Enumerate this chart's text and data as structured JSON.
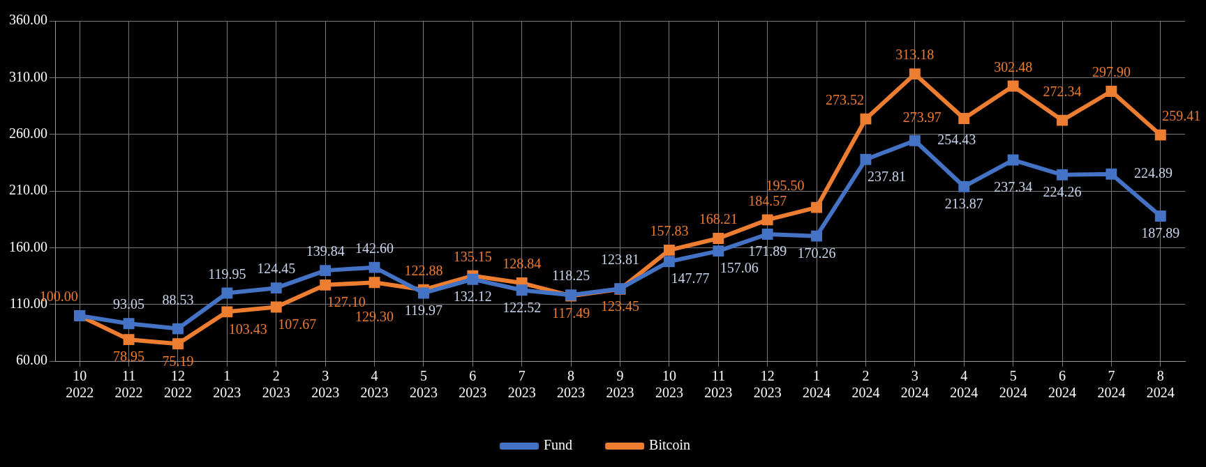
{
  "chart_data": {
    "type": "line",
    "categories": [
      "10\n2022",
      "11\n2022",
      "12\n2022",
      "1\n2023",
      "2\n2023",
      "3\n2023",
      "4\n2023",
      "5\n2023",
      "6\n2023",
      "7\n2023",
      "8\n2023",
      "9\n2023",
      "10\n2023",
      "11\n2023",
      "12\n2023",
      "1\n2024",
      "2\n2024",
      "3\n2024",
      "4\n2024",
      "5\n2024",
      "6\n2024",
      "7\n2024",
      "8\n2024"
    ],
    "series": [
      {
        "name": "Fund",
        "color": "#4472c4",
        "values": [
          100,
          93.05,
          88.53,
          119.95,
          124.45,
          139.84,
          142.6,
          119.97,
          132.12,
          122.52,
          118.25,
          123.81,
          147.77,
          157.06,
          171.89,
          170.26,
          237.81,
          254.43,
          213.87,
          237.34,
          224.26,
          224.89,
          187.89
        ],
        "value_labels": [
          null,
          "93.05",
          "88.53",
          "119.95",
          "124.45",
          "139.84",
          "142.60",
          "119.97",
          "132.12",
          "122.52",
          "118.25",
          "123.81",
          "147.77",
          "157.06",
          "171.89",
          "170.26",
          "237.81",
          "254.43",
          "213.87",
          "237.34",
          "224.26",
          "224.89",
          "187.89"
        ]
      },
      {
        "name": "Bitcoin",
        "color": "#ed7d31",
        "values": [
          100.0,
          78.95,
          75.19,
          103.43,
          107.67,
          127.1,
          129.3,
          122.88,
          135.15,
          128.84,
          117.49,
          123.45,
          157.83,
          168.21,
          184.57,
          195.5,
          273.52,
          313.18,
          273.97,
          302.48,
          272.34,
          297.9,
          259.41
        ],
        "value_labels": [
          "100.00",
          "78.95",
          "75.19",
          "103.43",
          "107.67",
          "127.10",
          "129.30",
          "122.88",
          "135.15",
          "128.84",
          "117.49",
          "123.45",
          "157.83",
          "168.21",
          "184.57",
          "195.50",
          "273.52",
          "313.18",
          "273.97",
          "302.48",
          "272.34",
          "297.90",
          "259.41"
        ]
      }
    ],
    "ylim": [
      60,
      360
    ],
    "yticks": [
      {
        "value": 60,
        "label": "60.00"
      },
      {
        "value": 110,
        "label": "110.00"
      },
      {
        "value": 160,
        "label": "160.00"
      },
      {
        "value": 210,
        "label": "210.00"
      },
      {
        "value": 260,
        "label": "260.00"
      },
      {
        "value": 310,
        "label": "310.00"
      },
      {
        "value": 360,
        "label": "360.00"
      }
    ],
    "grid": true,
    "legend": "bottom",
    "marker": "square",
    "line_style": "solid"
  }
}
